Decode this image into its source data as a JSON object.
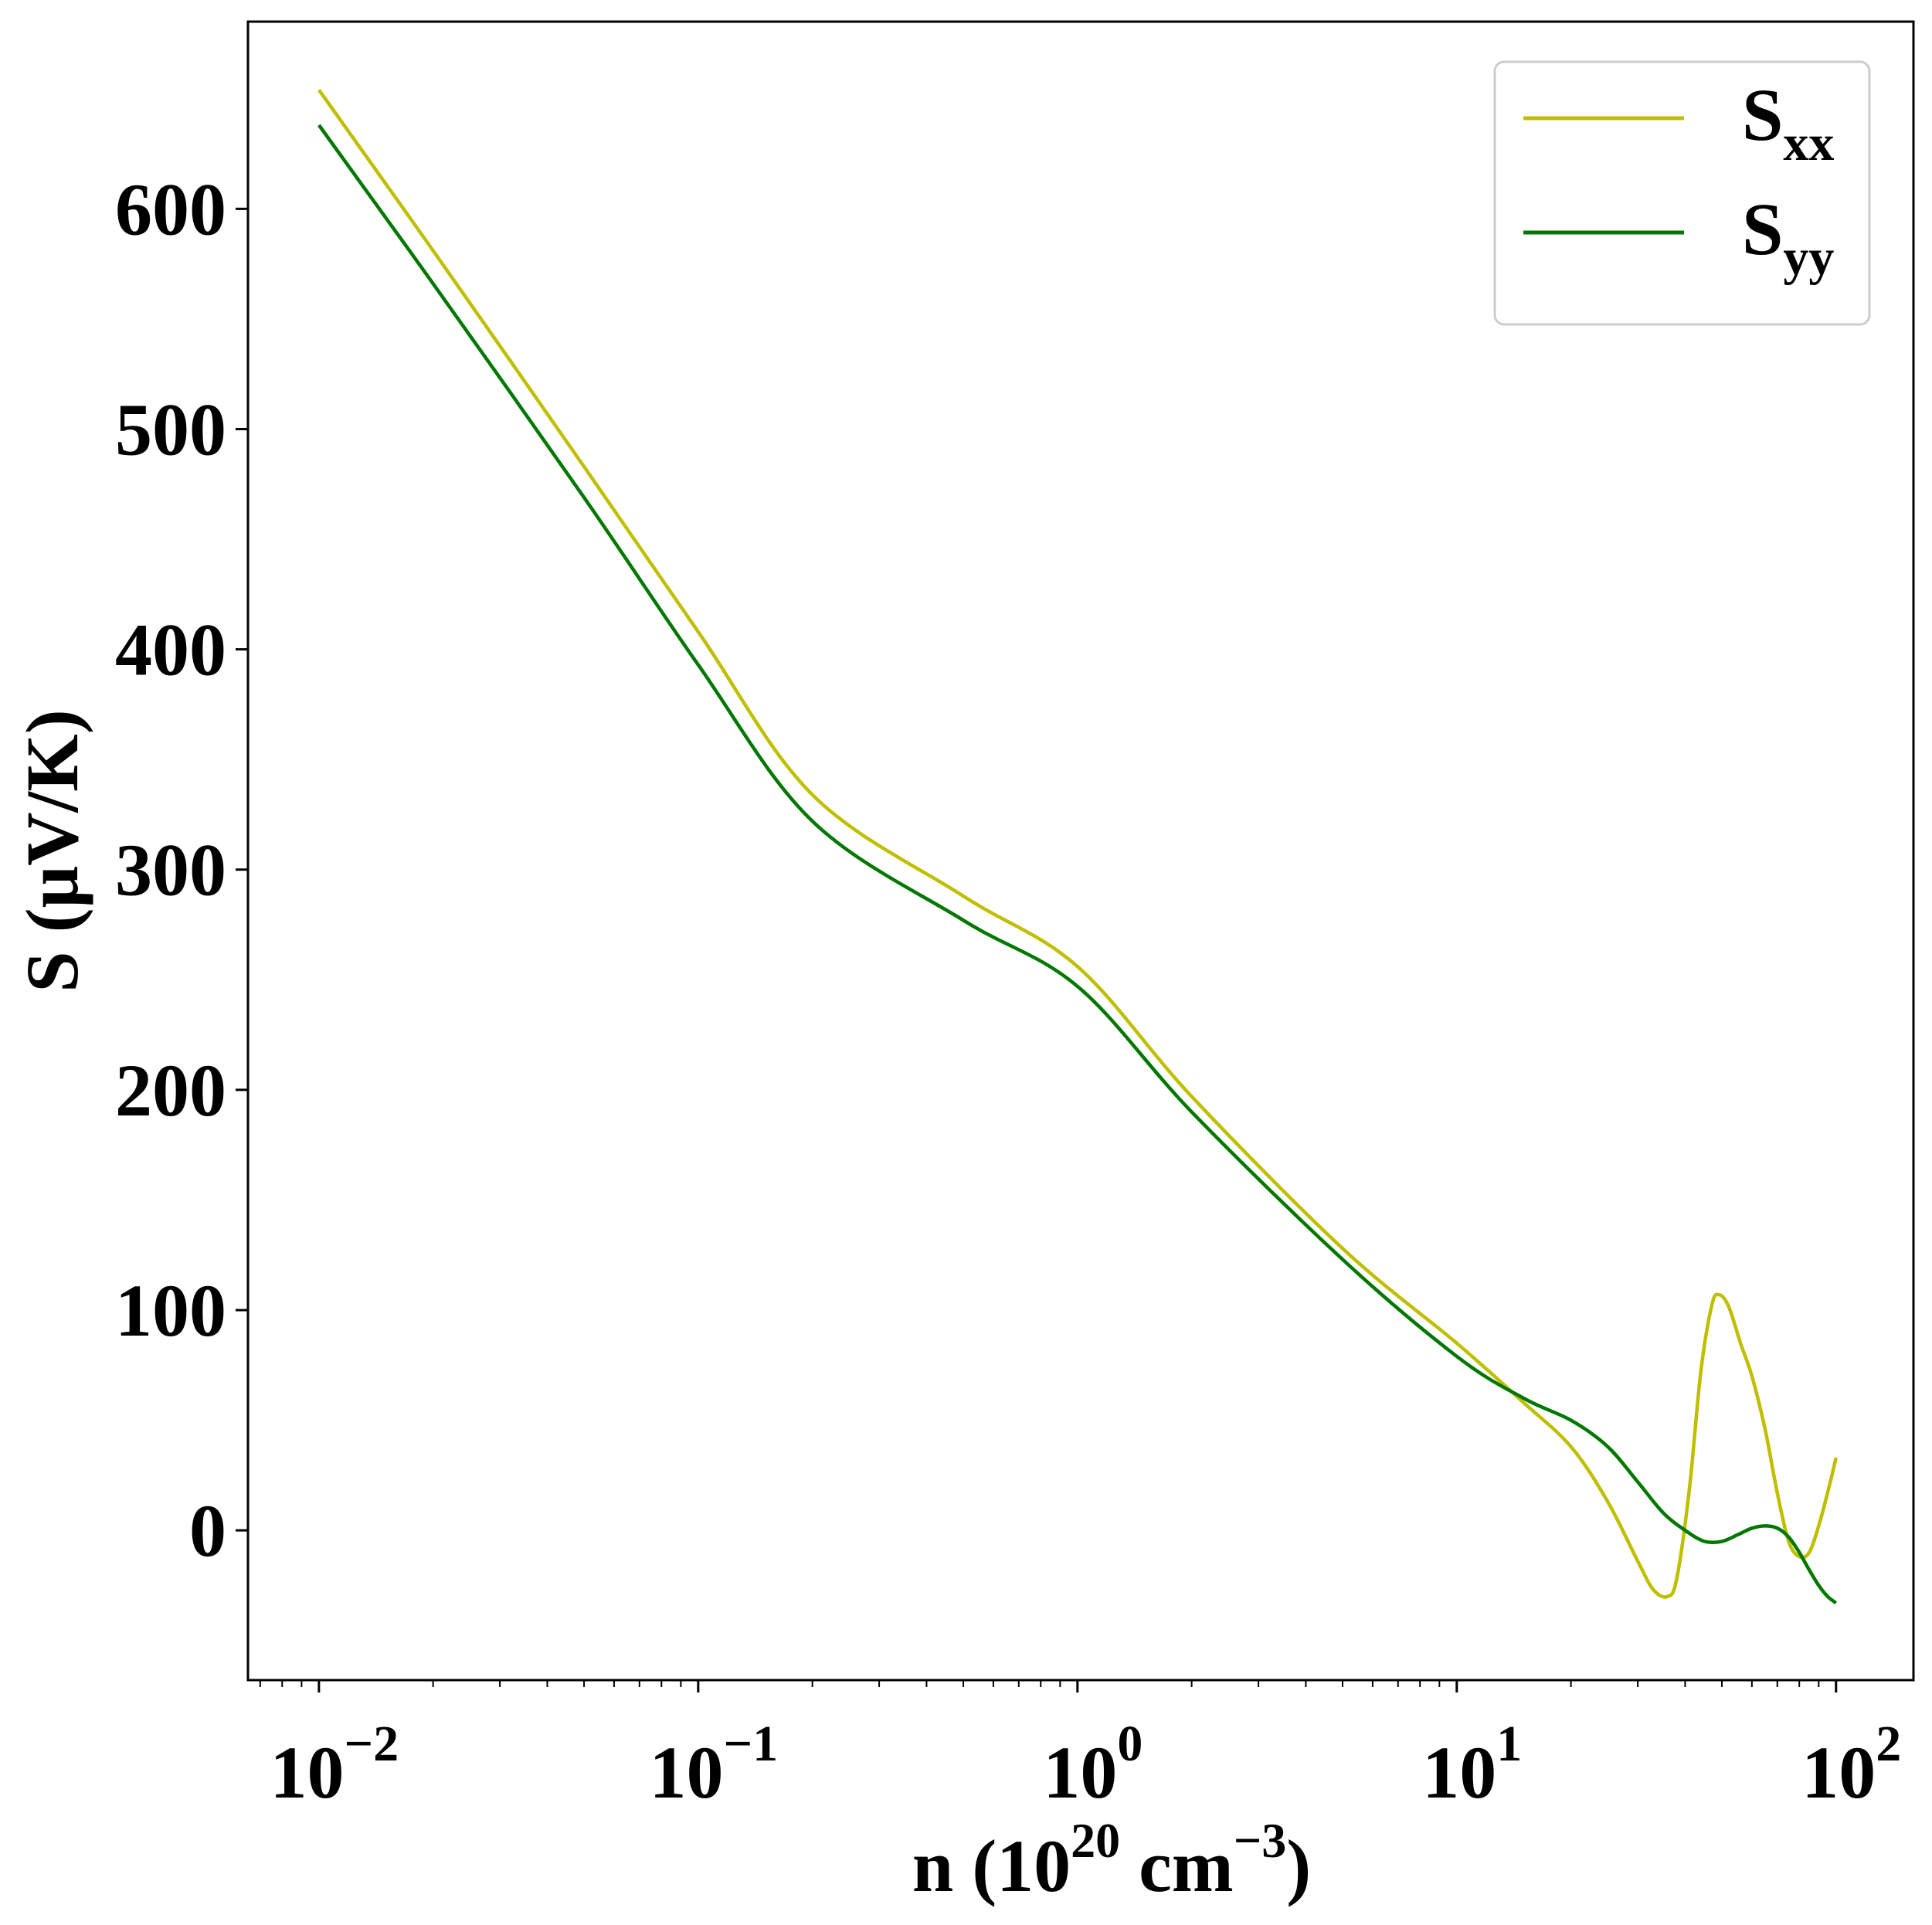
{
  "chart_data": {
    "type": "line",
    "title": "",
    "xlabel": {
      "base": "n (10",
      "sup1": "20",
      "mid": " cm",
      "sup2": "−3",
      "end": ")"
    },
    "ylabel": "S (μV/K)",
    "xscale": "log",
    "xlim": [
      0.0065,
      160
    ],
    "ylim": [
      -68,
      685
    ],
    "grid": false,
    "legend_position": "top-right",
    "x_ticks": [
      {
        "value": 0.01,
        "base": "10",
        "exp": "−2"
      },
      {
        "value": 0.1,
        "base": "10",
        "exp": "−1"
      },
      {
        "value": 1,
        "base": "10",
        "exp": "0"
      },
      {
        "value": 10,
        "base": "10",
        "exp": "1"
      },
      {
        "value": 100,
        "base": "10",
        "exp": "2"
      }
    ],
    "y_ticks": [
      {
        "value": 0,
        "label": "0"
      },
      {
        "value": 100,
        "label": "100"
      },
      {
        "value": 200,
        "label": "200"
      },
      {
        "value": 300,
        "label": "300"
      },
      {
        "value": 400,
        "label": "400"
      },
      {
        "value": 500,
        "label": "500"
      },
      {
        "value": 600,
        "label": "600"
      }
    ],
    "series": [
      {
        "name": "S",
        "subscript": "xx",
        "color": "#bfbf00",
        "points": [
          [
            0.01,
            654
          ],
          [
            0.02,
            581
          ],
          [
            0.05,
            483
          ],
          [
            0.1,
            408
          ],
          [
            0.2,
            334
          ],
          [
            0.5,
            288
          ],
          [
            1,
            256
          ],
          [
            2,
            197
          ],
          [
            5,
            128
          ],
          [
            10,
            85
          ],
          [
            15,
            58
          ],
          [
            20,
            38
          ],
          [
            25,
            13
          ],
          [
            30,
            -14
          ],
          [
            33,
            -27
          ],
          [
            36,
            -30
          ],
          [
            38,
            -22
          ],
          [
            41,
            18
          ],
          [
            44,
            72
          ],
          [
            47,
            102
          ],
          [
            49,
            107
          ],
          [
            52,
            102
          ],
          [
            56,
            85
          ],
          [
            60,
            70
          ],
          [
            65,
            46
          ],
          [
            70,
            17
          ],
          [
            75,
            -5
          ],
          [
            80,
            -12
          ],
          [
            85,
            -10
          ],
          [
            90,
            2
          ],
          [
            95,
            17
          ],
          [
            100,
            33
          ]
        ]
      },
      {
        "name": "S",
        "subscript": "yy",
        "color": "#007800",
        "points": [
          [
            0.01,
            638
          ],
          [
            0.02,
            566
          ],
          [
            0.05,
            469
          ],
          [
            0.1,
            393
          ],
          [
            0.2,
            322
          ],
          [
            0.5,
            277
          ],
          [
            1,
            247
          ],
          [
            2,
            190
          ],
          [
            5,
            123
          ],
          [
            10,
            79
          ],
          [
            15,
            60
          ],
          [
            20,
            50
          ],
          [
            25,
            38
          ],
          [
            30,
            22
          ],
          [
            35,
            8
          ],
          [
            40,
            0
          ],
          [
            45,
            -5
          ],
          [
            50,
            -5
          ],
          [
            55,
            -2
          ],
          [
            60,
            1
          ],
          [
            65,
            2
          ],
          [
            70,
            1
          ],
          [
            75,
            -3
          ],
          [
            80,
            -10
          ],
          [
            85,
            -18
          ],
          [
            90,
            -25
          ],
          [
            95,
            -30
          ],
          [
            100,
            -33
          ]
        ]
      }
    ]
  }
}
